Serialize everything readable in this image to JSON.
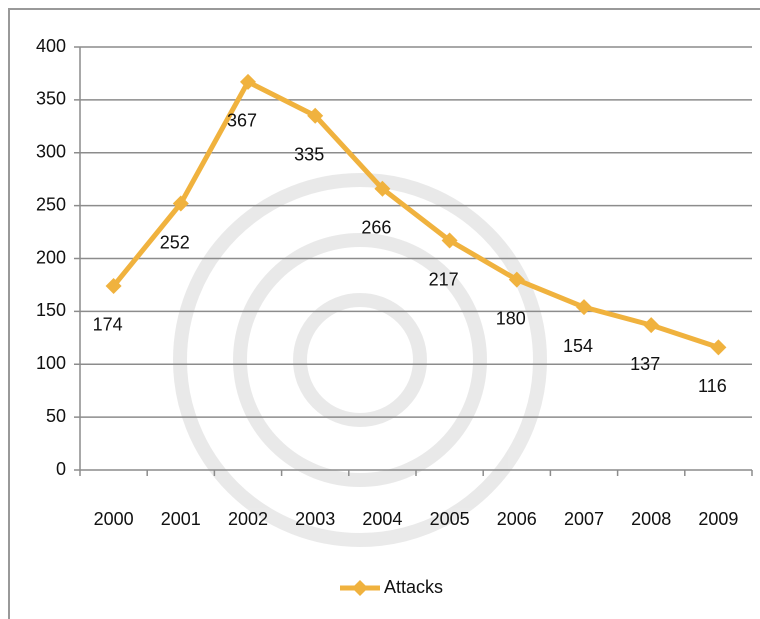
{
  "chart_data": {
    "type": "line",
    "categories": [
      "2000",
      "2001",
      "2002",
      "2003",
      "2004",
      "2005",
      "2006",
      "2007",
      "2008",
      "2009"
    ],
    "series": [
      {
        "name": "Attacks",
        "color": "#f0b23e",
        "values": [
          174,
          252,
          367,
          335,
          266,
          217,
          180,
          154,
          137,
          116
        ]
      }
    ],
    "ylim": [
      0,
      400
    ],
    "yticks": [
      0,
      50,
      100,
      150,
      200,
      250,
      300,
      350,
      400
    ],
    "grid": true,
    "legend": "bottom"
  }
}
